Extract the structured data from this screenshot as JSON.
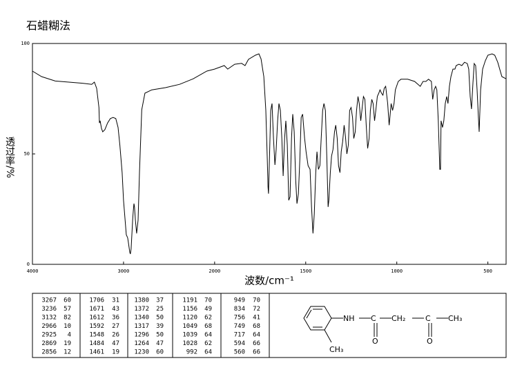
{
  "chart_data": {
    "type": "line",
    "title": "石蜡糊法",
    "xlabel": "波数/cm⁻¹",
    "ylabel": "透过率/%",
    "xlim": [
      4000,
      400
    ],
    "x_scale_break": 2000,
    "ylim": [
      0,
      100
    ],
    "xticks": [
      4000,
      3000,
      2000,
      1500,
      1000,
      500
    ],
    "yticks": [
      0,
      50,
      100
    ],
    "color": "#000000",
    "x": [
      4000,
      3900,
      3750,
      3600,
      3450,
      3350,
      3320,
      3295,
      3270,
      3265,
      3257,
      3242,
      3228,
      3205,
      3175,
      3145,
      3115,
      3085,
      3060,
      3040,
      3015,
      3000,
      2970,
      2955,
      2947,
      2932,
      2925,
      2917,
      2900,
      2893,
      2886,
      2880,
      2870,
      2856,
      2840,
      2825,
      2800,
      2765,
      2690,
      2540,
      2385,
      2235,
      2085,
      2000,
      1947,
      1928,
      1890,
      1852,
      1833,
      1814,
      1776,
      1757,
      1745,
      1730,
      1719,
      1711,
      1707,
      1704,
      1700,
      1692,
      1685,
      1677,
      1669,
      1662,
      1654,
      1647,
      1639,
      1631,
      1624,
      1616,
      1609,
      1601,
      1593,
      1586,
      1578,
      1571,
      1563,
      1555,
      1548,
      1540,
      1532,
      1525,
      1517,
      1506,
      1498,
      1487,
      1476,
      1468,
      1460,
      1453,
      1445,
      1438,
      1430,
      1422,
      1415,
      1407,
      1400,
      1392,
      1384,
      1377,
      1373,
      1365,
      1358,
      1350,
      1342,
      1335,
      1327,
      1320,
      1312,
      1305,
      1297,
      1289,
      1282,
      1274,
      1266,
      1259,
      1251,
      1243,
      1236,
      1228,
      1221,
      1213,
      1206,
      1198,
      1190,
      1183,
      1175,
      1168,
      1160,
      1152,
      1145,
      1137,
      1130,
      1122,
      1115,
      1107,
      1099,
      1092,
      1084,
      1076,
      1069,
      1061,
      1050,
      1042,
      1038,
      1031,
      1023,
      1015,
      1008,
      992,
      977,
      940,
      902,
      871,
      856,
      840,
      826,
      810,
      803,
      795,
      787,
      780,
      772,
      764,
      760,
      757,
      749,
      742,
      734,
      726,
      719,
      711,
      703,
      692,
      681,
      674,
      659,
      643,
      628,
      613,
      605,
      597,
      590,
      582,
      575,
      567,
      559,
      552,
      548,
      540,
      529,
      514,
      500,
      477,
      462,
      446,
      423,
      400
    ],
    "values": [
      87.5,
      85,
      83,
      82.5,
      82,
      81.5,
      82.5,
      79.7,
      71,
      64,
      65,
      61.5,
      60,
      61,
      64,
      66,
      66.5,
      66,
      62,
      54,
      41.5,
      29,
      13.4,
      12,
      10,
      5.6,
      4.7,
      7,
      20,
      24,
      27.5,
      26,
      20,
      14,
      20,
      41.5,
      70,
      77.5,
      79,
      80,
      81.5,
      84,
      87.5,
      88.4,
      90,
      88.4,
      90.6,
      91,
      90,
      92.8,
      94.7,
      95.3,
      93,
      85,
      69.7,
      47.8,
      35,
      32,
      44.7,
      69.7,
      72.8,
      57,
      45,
      52,
      65,
      72.8,
      69.7,
      57,
      40,
      57,
      65,
      54,
      29,
      30.6,
      57,
      68,
      60,
      38,
      27.5,
      32,
      47.8,
      66.5,
      68,
      57,
      51,
      44.7,
      43,
      26,
      14,
      22.8,
      41.5,
      51,
      43,
      44.7,
      57,
      69.7,
      72.8,
      69.7,
      47.8,
      26,
      29,
      41.5,
      49,
      52,
      60,
      63,
      57,
      44.7,
      41.5,
      51,
      55.6,
      63,
      58,
      50,
      54,
      69.7,
      71,
      66.5,
      57,
      60,
      69.7,
      76,
      72.8,
      65,
      71,
      76,
      74.7,
      63,
      52.5,
      57,
      69.7,
      74.7,
      72.8,
      65,
      69.7,
      76,
      77.5,
      79,
      77.5,
      76.6,
      79.7,
      80.6,
      72.8,
      63,
      66.5,
      72.8,
      69.7,
      72.8,
      79,
      82.8,
      83.8,
      83.8,
      82.8,
      80.6,
      82.8,
      82.8,
      83.8,
      82.8,
      74.7,
      79,
      80.6,
      79,
      65,
      43,
      43,
      65,
      62,
      65,
      72.8,
      76,
      72.8,
      80.6,
      85,
      88.4,
      88.4,
      90,
      90.6,
      90,
      91.5,
      90.9,
      88.4,
      76,
      70.3,
      82.2,
      90.9,
      90,
      79,
      66.5,
      60,
      79,
      88.4,
      92.2,
      94.7,
      95.3,
      94.7,
      91.5,
      85,
      84
    ]
  },
  "peak_table": {
    "rows": [
      [
        3267,
        60,
        1706,
        31,
        1380,
        37,
        1191,
        70,
        949,
        70
      ],
      [
        3236,
        57,
        1671,
        43,
        1372,
        25,
        1156,
        49,
        834,
        72
      ],
      [
        3132,
        82,
        1612,
        36,
        1340,
        50,
        1120,
        62,
        756,
        41
      ],
      [
        2966,
        10,
        1592,
        27,
        1317,
        39,
        1049,
        68,
        749,
        68
      ],
      [
        2925,
        4,
        1548,
        26,
        1296,
        50,
        1039,
        64,
        717,
        64
      ],
      [
        2869,
        19,
        1484,
        47,
        1264,
        47,
        1028,
        62,
        594,
        66
      ],
      [
        2856,
        12,
        1461,
        19,
        1230,
        60,
        992,
        64,
        560,
        66
      ]
    ]
  },
  "structure": {
    "labels": [
      "NH",
      "C",
      "CH₂",
      "C",
      "CH₃",
      "O",
      "O",
      "CH₃"
    ]
  }
}
